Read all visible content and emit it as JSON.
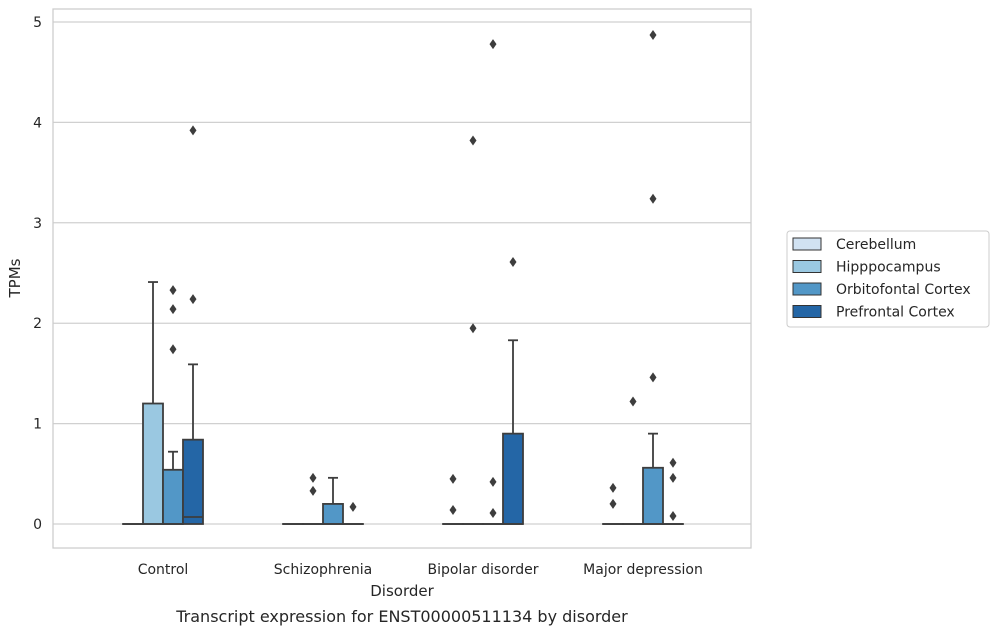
{
  "chart_data": {
    "type": "box",
    "caption": "Transcript expression for ENST00000511134 by disorder",
    "xlabel": "Disorder",
    "ylabel": "TPMs",
    "ylim": [
      -0.23,
      5.12
    ],
    "yticks": [
      0,
      1,
      2,
      3,
      4,
      5
    ],
    "grid": "horizontal",
    "legend_position": "right",
    "categories": [
      "Control",
      "Schizophrenia",
      "Bipolar disorder",
      "Major depression"
    ],
    "series": [
      {
        "name": "Cerebellum",
        "color": "#d1e2f2"
      },
      {
        "name": "Hipppocampus",
        "color": "#9ac8e1"
      },
      {
        "name": "Orbitofontal Cortex",
        "color": "#5297c7"
      },
      {
        "name": "Prefrontal Cortex",
        "color": "#2466a6"
      }
    ],
    "boxes": [
      {
        "category": "Control",
        "series": "Cerebellum",
        "q1": 0,
        "median": 0,
        "q3": 0,
        "whisker_low": 0,
        "whisker_high": 0,
        "outliers": []
      },
      {
        "category": "Control",
        "series": "Hipppocampus",
        "q1": 0,
        "median": 0,
        "q3": 1.2,
        "whisker_low": 0,
        "whisker_high": 2.41,
        "outliers": []
      },
      {
        "category": "Control",
        "series": "Orbitofontal Cortex",
        "q1": 0,
        "median": 0,
        "q3": 0.54,
        "whisker_low": 0,
        "whisker_high": 0.72,
        "outliers": [
          1.74,
          2.14,
          2.33
        ]
      },
      {
        "category": "Control",
        "series": "Prefrontal Cortex",
        "q1": 0,
        "median": 0.07,
        "q3": 0.84,
        "whisker_low": 0,
        "whisker_high": 1.59,
        "outliers": [
          2.24,
          3.92
        ]
      },
      {
        "category": "Schizophrenia",
        "series": "Cerebellum",
        "q1": 0,
        "median": 0,
        "q3": 0,
        "whisker_low": 0,
        "whisker_high": 0,
        "outliers": []
      },
      {
        "category": "Schizophrenia",
        "series": "Hipppocampus",
        "q1": 0,
        "median": 0,
        "q3": 0,
        "whisker_low": 0,
        "whisker_high": 0,
        "outliers": [
          0.33,
          0.46
        ]
      },
      {
        "category": "Schizophrenia",
        "series": "Orbitofontal Cortex",
        "q1": 0,
        "median": 0,
        "q3": 0.2,
        "whisker_low": 0,
        "whisker_high": 0.46,
        "outliers": []
      },
      {
        "category": "Schizophrenia",
        "series": "Prefrontal Cortex",
        "q1": 0,
        "median": 0,
        "q3": 0,
        "whisker_low": 0,
        "whisker_high": 0,
        "outliers": [
          0.17
        ]
      },
      {
        "category": "Bipolar disorder",
        "series": "Cerebellum",
        "q1": 0,
        "median": 0,
        "q3": 0,
        "whisker_low": 0,
        "whisker_high": 0,
        "outliers": [
          0.14,
          0.45
        ]
      },
      {
        "category": "Bipolar disorder",
        "series": "Hipppocampus",
        "q1": 0,
        "median": 0,
        "q3": 0,
        "whisker_low": 0,
        "whisker_high": 0,
        "outliers": [
          1.95,
          3.82
        ]
      },
      {
        "category": "Bipolar disorder",
        "series": "Orbitofontal Cortex",
        "q1": 0,
        "median": 0,
        "q3": 0,
        "whisker_low": 0,
        "whisker_high": 0,
        "outliers": [
          0.11,
          0.42,
          4.78
        ]
      },
      {
        "category": "Bipolar disorder",
        "series": "Prefrontal Cortex",
        "q1": 0,
        "median": 0,
        "q3": 0.9,
        "whisker_low": 0,
        "whisker_high": 1.83,
        "outliers": [
          2.61
        ]
      },
      {
        "category": "Major depression",
        "series": "Cerebellum",
        "q1": 0,
        "median": 0,
        "q3": 0,
        "whisker_low": 0,
        "whisker_high": 0,
        "outliers": [
          0.2,
          0.36
        ]
      },
      {
        "category": "Major depression",
        "series": "Hipppocampus",
        "q1": 0,
        "median": 0,
        "q3": 0,
        "whisker_low": 0,
        "whisker_high": 0,
        "outliers": [
          1.22
        ]
      },
      {
        "category": "Major depression",
        "series": "Orbitofontal Cortex",
        "q1": 0,
        "median": 0,
        "q3": 0.56,
        "whisker_low": 0,
        "whisker_high": 0.9,
        "outliers": [
          1.46,
          3.24,
          4.87
        ]
      },
      {
        "category": "Major depression",
        "series": "Prefrontal Cortex",
        "q1": 0,
        "median": 0,
        "q3": 0,
        "whisker_low": 0,
        "whisker_high": 0,
        "outliers": [
          0.08,
          0.46,
          0.61
        ]
      }
    ]
  }
}
